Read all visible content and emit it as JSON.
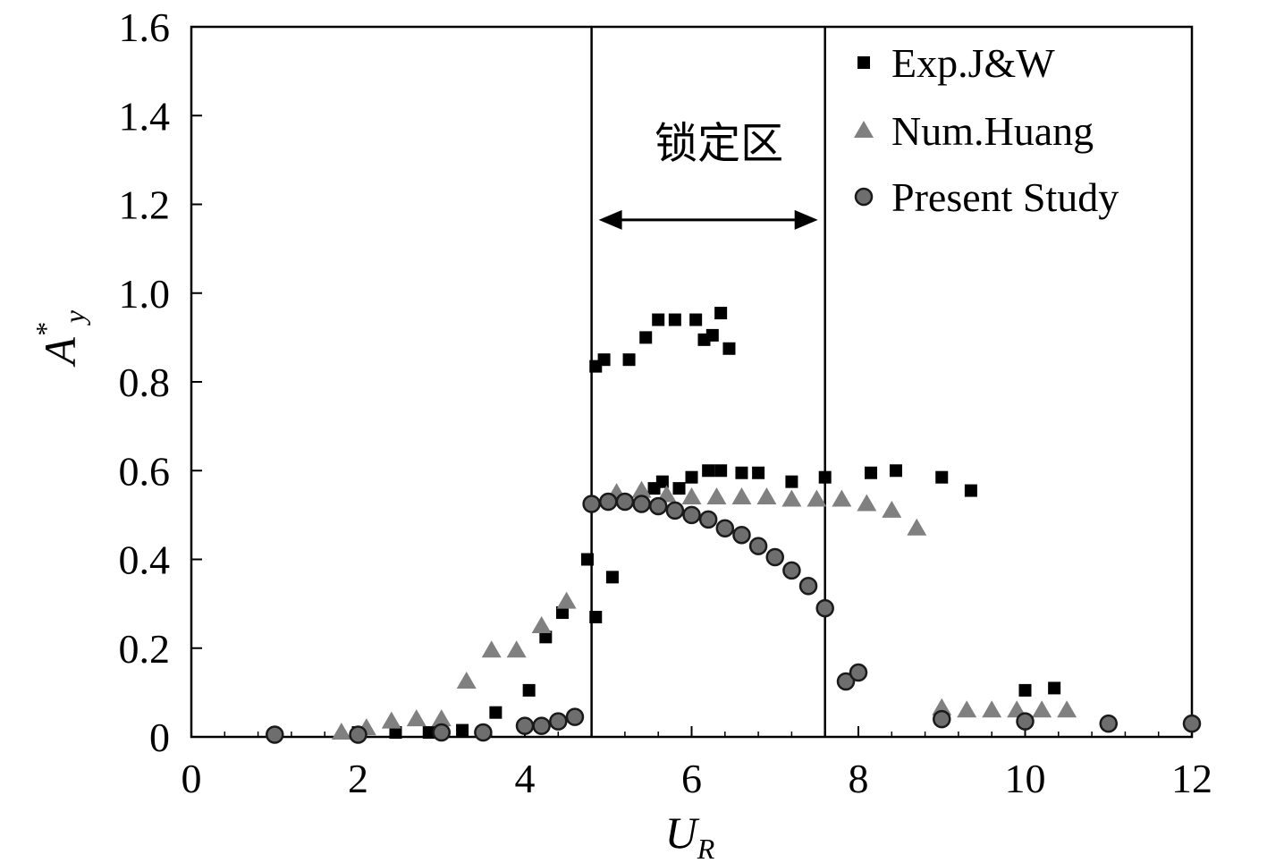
{
  "chart_data": {
    "type": "scatter",
    "title": "",
    "xlabel": {
      "main": "U",
      "sub": "R"
    },
    "ylabel": {
      "main": "A",
      "sup": "*",
      "sub": "y"
    },
    "xlim": [
      0,
      12
    ],
    "ylim": [
      0,
      1.6
    ],
    "xticks": [
      "0",
      "2",
      "4",
      "6",
      "8",
      "10",
      "12"
    ],
    "xtick_values": [
      0,
      2,
      4,
      6,
      8,
      10,
      12
    ],
    "yticks": [
      "0",
      "0.2",
      "0.4",
      "0.6",
      "0.8",
      "1.0",
      "1.2",
      "1.4",
      "1.6"
    ],
    "ytick_values": [
      0,
      0.2,
      0.4,
      0.6,
      0.8,
      1.0,
      1.2,
      1.4,
      1.6
    ],
    "grid": false,
    "legend_position": "top-right",
    "annotations": {
      "lock_in_label": "锁定区",
      "lock_in_range": [
        4.8,
        7.6
      ]
    },
    "series": [
      {
        "name": "Exp.J&W",
        "marker": "square",
        "color": "#000000",
        "points": [
          [
            2.0,
            0.01
          ],
          [
            2.45,
            0.01
          ],
          [
            2.85,
            0.01
          ],
          [
            3.25,
            0.015
          ],
          [
            3.65,
            0.055
          ],
          [
            4.05,
            0.105
          ],
          [
            4.25,
            0.225
          ],
          [
            4.45,
            0.28
          ],
          [
            4.75,
            0.4
          ],
          [
            4.85,
            0.27
          ],
          [
            4.85,
            0.835
          ],
          [
            4.95,
            0.85
          ],
          [
            5.05,
            0.36
          ],
          [
            5.25,
            0.85
          ],
          [
            5.45,
            0.9
          ],
          [
            5.6,
            0.94
          ],
          [
            5.8,
            0.94
          ],
          [
            6.05,
            0.94
          ],
          [
            6.15,
            0.895
          ],
          [
            6.25,
            0.905
          ],
          [
            6.35,
            0.955
          ],
          [
            6.45,
            0.875
          ],
          [
            5.55,
            0.56
          ],
          [
            5.65,
            0.575
          ],
          [
            5.85,
            0.56
          ],
          [
            6.0,
            0.585
          ],
          [
            6.2,
            0.6
          ],
          [
            6.35,
            0.6
          ],
          [
            6.6,
            0.595
          ],
          [
            6.8,
            0.595
          ],
          [
            7.2,
            0.575
          ],
          [
            7.6,
            0.585
          ],
          [
            8.15,
            0.595
          ],
          [
            8.45,
            0.6
          ],
          [
            9.0,
            0.585
          ],
          [
            9.35,
            0.555
          ],
          [
            10.0,
            0.105
          ],
          [
            10.35,
            0.11
          ]
        ]
      },
      {
        "name": "Num.Huang",
        "marker": "triangle",
        "color": "#808080",
        "points": [
          [
            1.8,
            0.01
          ],
          [
            2.1,
            0.02
          ],
          [
            2.4,
            0.035
          ],
          [
            2.7,
            0.04
          ],
          [
            3.0,
            0.04
          ],
          [
            3.3,
            0.125
          ],
          [
            3.6,
            0.195
          ],
          [
            3.9,
            0.195
          ],
          [
            4.2,
            0.25
          ],
          [
            4.5,
            0.305
          ],
          [
            5.1,
            0.55
          ],
          [
            5.4,
            0.555
          ],
          [
            5.7,
            0.545
          ],
          [
            6.0,
            0.54
          ],
          [
            6.3,
            0.54
          ],
          [
            6.6,
            0.54
          ],
          [
            6.9,
            0.54
          ],
          [
            7.2,
            0.535
          ],
          [
            7.5,
            0.535
          ],
          [
            7.8,
            0.535
          ],
          [
            8.1,
            0.525
          ],
          [
            8.4,
            0.51
          ],
          [
            8.7,
            0.47
          ],
          [
            9.0,
            0.065
          ],
          [
            9.3,
            0.06
          ],
          [
            9.6,
            0.06
          ],
          [
            9.9,
            0.06
          ],
          [
            10.2,
            0.06
          ],
          [
            10.5,
            0.06
          ]
        ]
      },
      {
        "name": "Present Study",
        "marker": "circle",
        "color": "#6e6e6e",
        "points": [
          [
            1.0,
            0.005
          ],
          [
            2.0,
            0.005
          ],
          [
            3.0,
            0.01
          ],
          [
            3.5,
            0.01
          ],
          [
            4.0,
            0.025
          ],
          [
            4.2,
            0.025
          ],
          [
            4.4,
            0.035
          ],
          [
            4.6,
            0.045
          ],
          [
            4.8,
            0.525
          ],
          [
            5.0,
            0.53
          ],
          [
            5.2,
            0.53
          ],
          [
            5.4,
            0.525
          ],
          [
            5.6,
            0.52
          ],
          [
            5.8,
            0.51
          ],
          [
            6.0,
            0.5
          ],
          [
            6.2,
            0.49
          ],
          [
            6.4,
            0.47
          ],
          [
            6.6,
            0.455
          ],
          [
            6.8,
            0.43
          ],
          [
            7.0,
            0.405
          ],
          [
            7.2,
            0.375
          ],
          [
            7.4,
            0.34
          ],
          [
            7.6,
            0.29
          ],
          [
            7.85,
            0.125
          ],
          [
            8.0,
            0.145
          ],
          [
            9.0,
            0.04
          ],
          [
            10.0,
            0.035
          ],
          [
            11.0,
            0.03
          ],
          [
            12.0,
            0.03
          ]
        ]
      }
    ]
  }
}
